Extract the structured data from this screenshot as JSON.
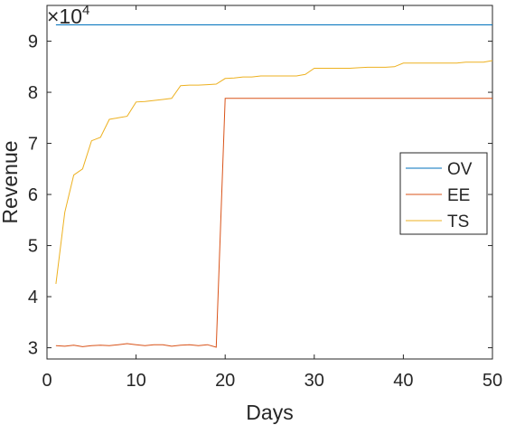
{
  "chart_data": {
    "type": "line",
    "xlabel": "Days",
    "ylabel": "Revenue",
    "exponent_label": "×10",
    "exponent_power": "4",
    "xlim": [
      0,
      50
    ],
    "ylim": [
      27800,
      97000
    ],
    "x_ticks": [
      0,
      10,
      20,
      30,
      40,
      50
    ],
    "y_ticks": [
      30000,
      40000,
      50000,
      60000,
      70000,
      80000,
      90000
    ],
    "y_tick_labels": [
      "3",
      "4",
      "5",
      "6",
      "7",
      "8",
      "9"
    ],
    "grid": false,
    "legend_position": "right",
    "series": [
      {
        "name": "OV",
        "color": "#0072BD",
        "x": [
          1,
          50
        ],
        "y": [
          93200,
          93200
        ]
      },
      {
        "name": "EE",
        "color": "#D95319",
        "x": [
          1,
          2,
          3,
          4,
          5,
          6,
          7,
          8,
          9,
          10,
          11,
          12,
          13,
          14,
          15,
          16,
          17,
          18,
          19,
          20,
          21,
          22,
          23,
          24,
          25,
          26,
          27,
          28,
          29,
          30,
          31,
          32,
          33,
          34,
          35,
          36,
          37,
          38,
          39,
          40,
          41,
          42,
          43,
          44,
          45,
          46,
          47,
          48,
          49,
          50
        ],
        "y": [
          30400,
          30300,
          30500,
          30200,
          30400,
          30500,
          30400,
          30600,
          30800,
          30600,
          30400,
          30600,
          30600,
          30300,
          30500,
          30600,
          30400,
          30600,
          30100,
          78800,
          78800,
          78800,
          78800,
          78800,
          78800,
          78800,
          78800,
          78800,
          78800,
          78800,
          78800,
          78800,
          78800,
          78800,
          78800,
          78800,
          78800,
          78800,
          78800,
          78800,
          78800,
          78800,
          78800,
          78800,
          78800,
          78800,
          78800,
          78800,
          78800,
          78800
        ]
      },
      {
        "name": "TS",
        "color": "#EDB120",
        "x": [
          1,
          2,
          3,
          4,
          5,
          6,
          7,
          8,
          9,
          10,
          11,
          12,
          13,
          14,
          15,
          16,
          17,
          18,
          19,
          20,
          21,
          22,
          23,
          24,
          25,
          26,
          27,
          28,
          29,
          30,
          31,
          32,
          33,
          34,
          35,
          36,
          37,
          38,
          39,
          40,
          41,
          42,
          43,
          44,
          45,
          46,
          47,
          48,
          49,
          50
        ],
        "y": [
          42500,
          56500,
          63800,
          65000,
          70500,
          71200,
          74700,
          75000,
          75300,
          78100,
          78200,
          78400,
          78600,
          78800,
          81300,
          81400,
          81400,
          81500,
          81600,
          82700,
          82800,
          83000,
          83000,
          83200,
          83200,
          83200,
          83200,
          83200,
          83500,
          84700,
          84700,
          84700,
          84700,
          84700,
          84800,
          84900,
          84900,
          84900,
          85000,
          85700,
          85700,
          85700,
          85700,
          85700,
          85700,
          85700,
          85900,
          85900,
          85900,
          86200
        ]
      }
    ]
  }
}
